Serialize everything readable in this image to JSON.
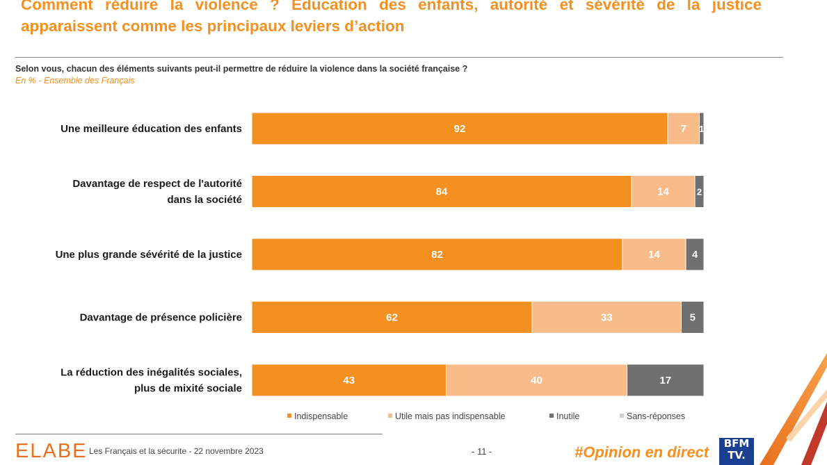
{
  "slide": {
    "title": "Comment réduire la violence ? Éducation des enfants, autorité et sévérité de la justice apparaissent comme les principaux leviers d’action",
    "question": "Selon vous, chacun des éléments suivants peut-il permettre de réduire la violence dans la société française ?",
    "subtitle": "En % - Ensemble des Français"
  },
  "colors": {
    "accent": "#F39020",
    "indispensable": "#F39020",
    "utile": "#F8BC8A",
    "inutile": "#707070",
    "sans_reponses": "#D0D0D0"
  },
  "chart_data": {
    "type": "bar",
    "orientation": "horizontal",
    "stacked": true,
    "xlim": [
      0,
      100
    ],
    "unit": "%",
    "categories": [
      "Une meilleure éducation des enfants",
      "Davantage de respect de l'autorité dans la société",
      "Une plus grande sévérité de la justice",
      "Davantage de présence policière",
      "La réduction des inégalités sociales, plus de mixité sociale"
    ],
    "category_lines": [
      [
        "Une meilleure éducation des enfants"
      ],
      [
        "Davantage de respect de l'autorité",
        "dans la société"
      ],
      [
        "Une plus grande sévérité de la justice"
      ],
      [
        "Davantage de présence policière"
      ],
      [
        "La réduction des inégalités sociales,",
        "plus de mixité sociale"
      ]
    ],
    "series": [
      {
        "name": "Indispensable",
        "values": [
          92,
          84,
          82,
          62,
          43
        ]
      },
      {
        "name": "Utile mais pas indispensable",
        "values": [
          7,
          14,
          14,
          33,
          40
        ]
      },
      {
        "name": "Inutile",
        "values": [
          1,
          2,
          4,
          5,
          17
        ]
      },
      {
        "name": "Sans-réponses",
        "values": [
          0,
          0,
          0,
          0,
          0
        ]
      }
    ],
    "legend_position": "bottom"
  },
  "footer": {
    "logo": "ELABE",
    "source": "Les Français et la sécurite - 22 novembre 2023",
    "page": "- 11 -",
    "hashtag": "#Opinion en direct",
    "channel_logo_lines": [
      "BFM",
      "TV."
    ]
  }
}
